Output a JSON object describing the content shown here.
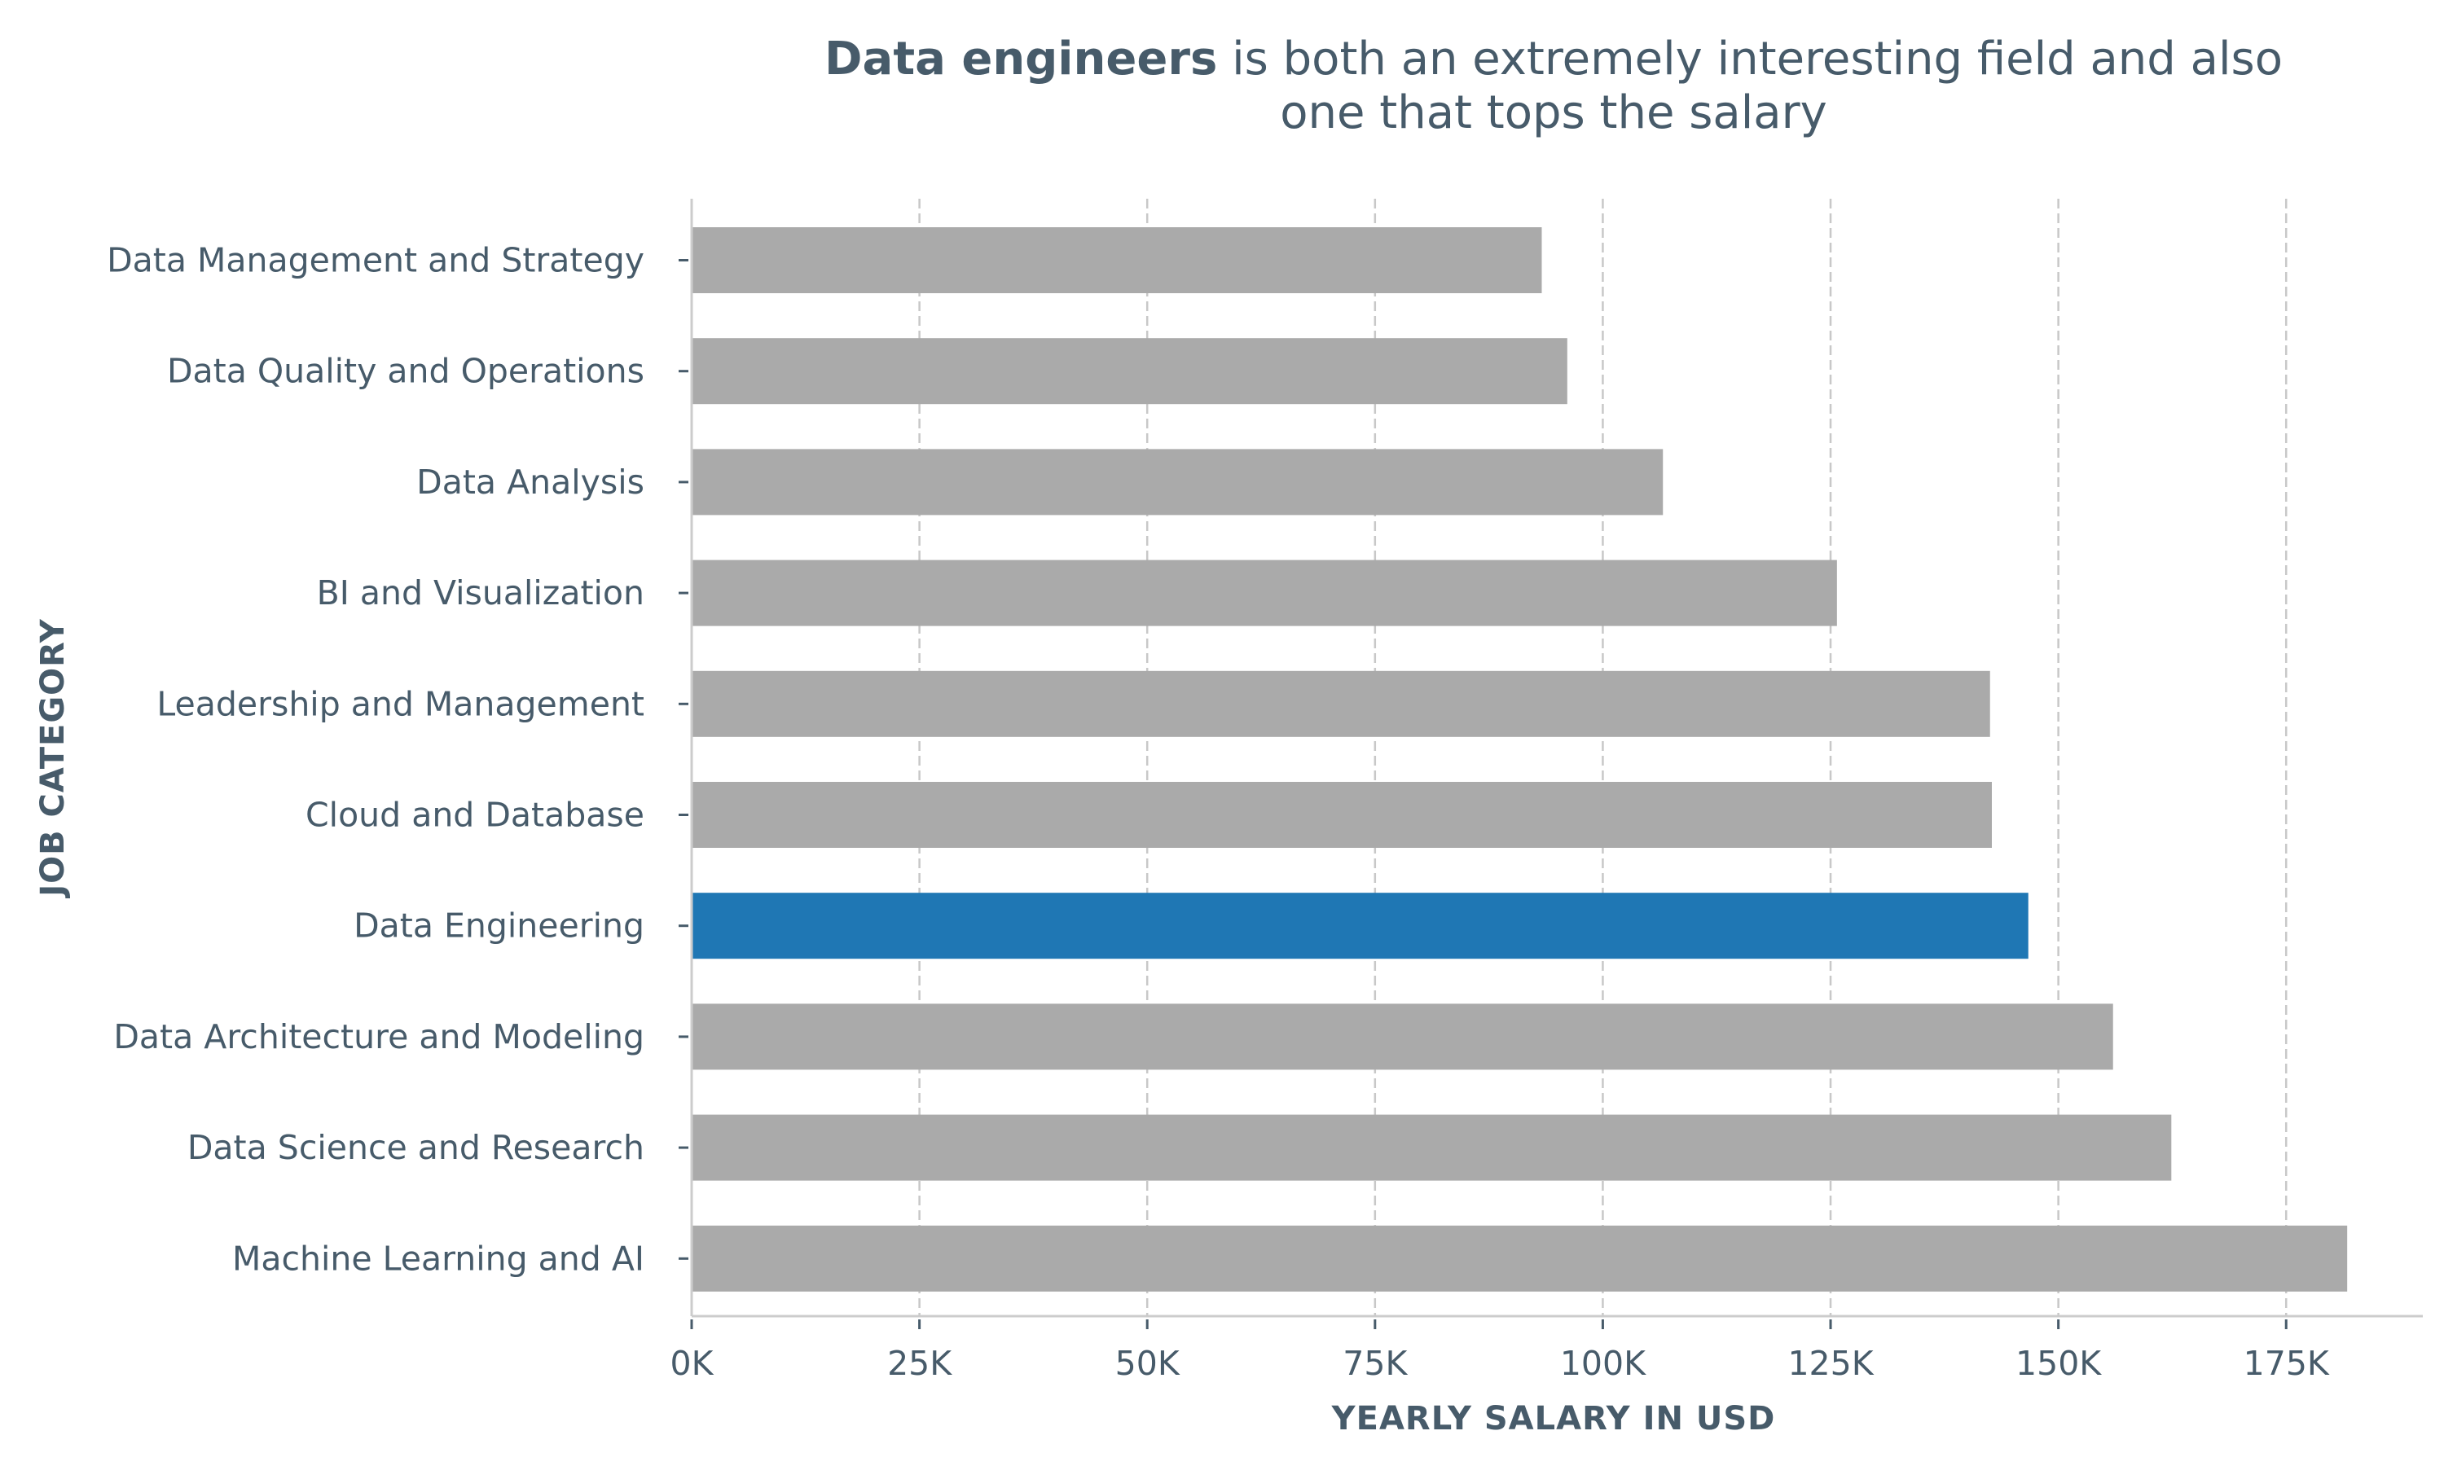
{
  "chart_data": {
    "type": "bar",
    "orientation": "horizontal",
    "title_bold": "Data engineers",
    "title_line1_rest": "is both an extremely interesting field and also",
    "title_line2": "one that tops the salary",
    "xlabel": "YEARLY SALARY IN USD",
    "ylabel": "JOB CATEGORY",
    "xlim": [
      0,
      190000
    ],
    "x_ticks": [
      0,
      25000,
      50000,
      75000,
      100000,
      125000,
      150000,
      175000
    ],
    "x_tick_labels": [
      "0K",
      "25K",
      "50K",
      "75K",
      "100K",
      "125K",
      "150K",
      "175K"
    ],
    "grid": "vertical dashed",
    "categories": [
      "Data Management and Strategy",
      "Data Quality and Operations",
      "Data Analysis",
      "BI and Visualization",
      "Leadership and Management",
      "Cloud and Database",
      "Data Engineering",
      "Data Architecture and Modeling",
      "Data Science and Research",
      "Machine Learning and AI"
    ],
    "values": [
      93300,
      96100,
      106600,
      125700,
      142500,
      142700,
      146700,
      156000,
      162400,
      181700
    ],
    "highlight_category": "Data Engineering",
    "colors": {
      "default_bar": "#aaaaaa",
      "highlight_bar": "#1f77b4",
      "text": "#475b6a",
      "grid": "#c8c8c8",
      "axis": "#cccccc"
    }
  }
}
